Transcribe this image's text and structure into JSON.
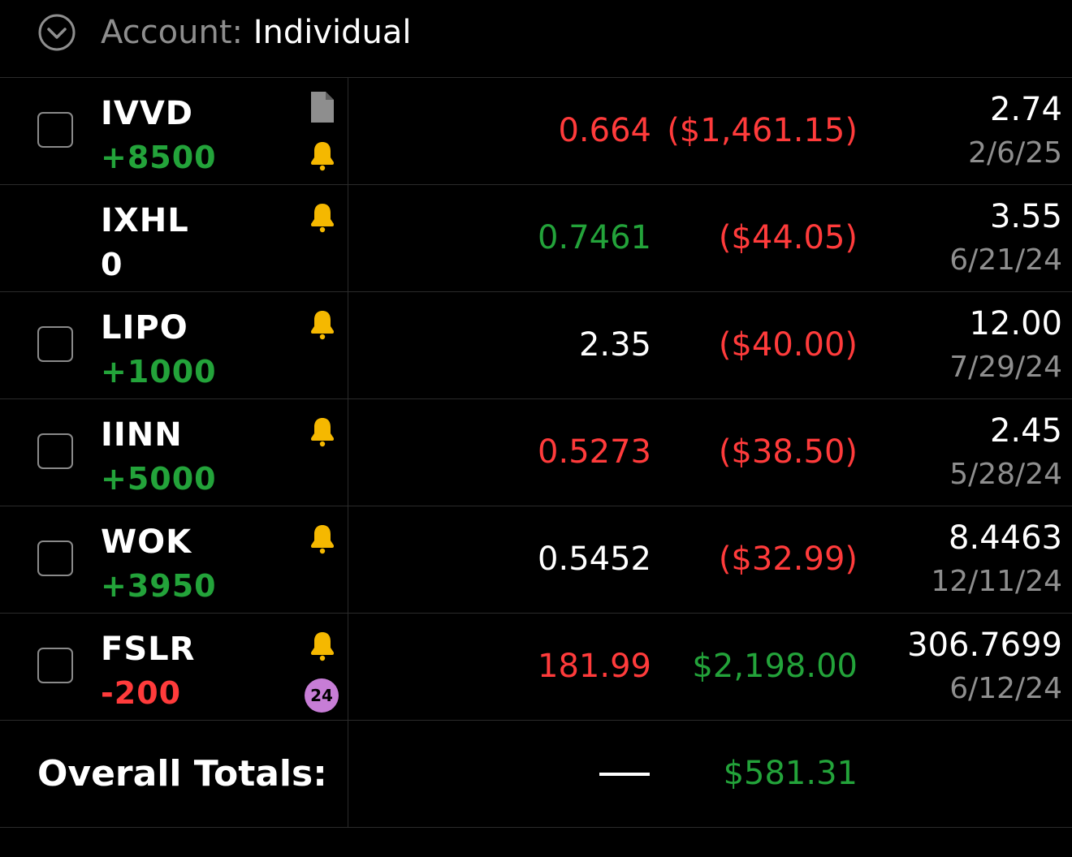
{
  "header": {
    "account_label": "Account: ",
    "account_value": "Individual"
  },
  "rows": [
    {
      "symbol": "IVVD",
      "qty": "+8500",
      "qty_sign": "pos",
      "price": "0.664",
      "price_color": "neg",
      "pl": "($1,461.15)",
      "pl_color": "neg",
      "cost": "2.74",
      "date": "2/6/25",
      "has_checkbox": true,
      "has_doc": true,
      "has_bell": true
    },
    {
      "symbol": "IXHL",
      "qty": "0",
      "qty_sign": "neutral",
      "price": "0.7461",
      "price_color": "pos",
      "pl": "($44.05)",
      "pl_color": "neg",
      "cost": "3.55",
      "date": "6/21/24",
      "has_checkbox": false,
      "has_bell": true
    },
    {
      "symbol": "LIPO",
      "qty": "+1000",
      "qty_sign": "pos",
      "price": "2.35",
      "price_color": "neutral",
      "pl": "($40.00)",
      "pl_color": "neg",
      "cost": "12.00",
      "date": "7/29/24",
      "has_checkbox": true,
      "has_bell": true
    },
    {
      "symbol": "IINN",
      "qty": "+5000",
      "qty_sign": "pos",
      "price": "0.5273",
      "price_color": "neg",
      "pl": "($38.50)",
      "pl_color": "neg",
      "cost": "2.45",
      "date": "5/28/24",
      "has_checkbox": true,
      "has_bell": true
    },
    {
      "symbol": "WOK",
      "qty": "+3950",
      "qty_sign": "pos",
      "price": "0.5452",
      "price_color": "neutral",
      "pl": "($32.99)",
      "pl_color": "neg",
      "cost": "8.4463",
      "date": "12/11/24",
      "has_checkbox": true,
      "has_bell": true
    },
    {
      "symbol": "FSLR",
      "qty": "-200",
      "qty_sign": "neg",
      "price": "181.99",
      "price_color": "neg",
      "pl": "$2,198.00",
      "pl_color": "pos",
      "cost": "306.7699",
      "date": "6/12/24",
      "has_checkbox": true,
      "has_bell": true,
      "badge": "24"
    }
  ],
  "totals": {
    "label": "Overall Totals:",
    "value": "$581.31"
  },
  "colors": {
    "background": "#000000",
    "positive": "#23a33a",
    "negative": "#ff3b3b",
    "muted": "#8e8e8e",
    "bell": "#f5b800",
    "badge": "#c77dd6"
  }
}
